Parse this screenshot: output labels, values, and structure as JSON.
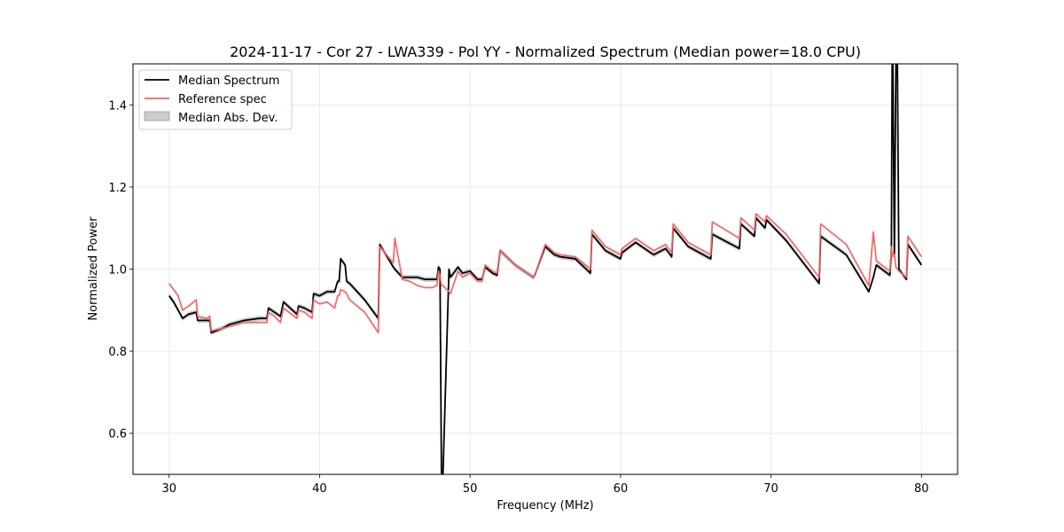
{
  "chart_data": {
    "type": "line",
    "title": "2024-11-17 - Cor 27 - LWA339 - Pol YY - Normalized Spectrum (Median power=18.0 CPU)",
    "xlabel": "Frequency (MHz)",
    "ylabel": "Normalized Power",
    "xlim": [
      27.6,
      82.4
    ],
    "ylim": [
      0.5,
      1.5
    ],
    "xticks": [
      30,
      40,
      50,
      60,
      70,
      80
    ],
    "yticks": [
      0.6,
      0.8,
      1.0,
      1.2,
      1.4
    ],
    "xtick_labels": [
      "30",
      "40",
      "50",
      "60",
      "70",
      "80"
    ],
    "ytick_labels": [
      "0.6",
      "0.8",
      "1.0",
      "1.2",
      "1.4"
    ],
    "grid": true,
    "legend_position": "top-left",
    "series": [
      {
        "name": "Median Spectrum",
        "color": "#000000",
        "x": [
          30.0,
          30.3,
          30.6,
          30.9,
          31.3,
          31.8,
          31.9,
          32.5,
          32.7,
          32.8,
          33.5,
          34.0,
          35.0,
          36.0,
          36.5,
          36.6,
          37.0,
          37.4,
          37.6,
          38.5,
          38.6,
          39.0,
          39.5,
          39.6,
          40.0,
          40.5,
          41.0,
          41.2,
          41.3,
          41.4,
          41.7,
          41.8,
          42.0,
          43.0,
          43.9,
          44.0,
          44.9,
          45.0,
          45.5,
          46.0,
          46.5,
          47.0,
          47.5,
          47.8,
          47.9,
          48.0,
          48.1,
          48.2,
          48.6,
          48.7,
          49.2,
          49.5,
          50.0,
          50.5,
          50.8,
          51.0,
          51.5,
          51.8,
          52.0,
          53.0,
          54.0,
          54.2,
          54.3,
          55.0,
          55.6,
          56.0,
          57.0,
          58.0,
          58.1,
          59.0,
          60.0,
          60.1,
          61.0,
          62.0,
          62.2,
          63.0,
          63.4,
          63.5,
          64.5,
          66.0,
          66.1,
          67.9,
          68.0,
          68.9,
          69.0,
          69.6,
          69.7,
          71.0,
          73.2,
          73.3,
          75.0,
          76.5,
          76.8,
          77.0,
          77.9,
          78.0,
          78.05,
          78.1,
          78.2,
          78.3,
          78.4,
          78.5,
          79.0,
          79.1,
          80.0
        ],
        "y": [
          0.935,
          0.92,
          0.9,
          0.88,
          0.89,
          0.895,
          0.875,
          0.875,
          0.875,
          0.845,
          0.855,
          0.865,
          0.875,
          0.88,
          0.88,
          0.905,
          0.895,
          0.885,
          0.92,
          0.89,
          0.91,
          0.905,
          0.895,
          0.94,
          0.935,
          0.945,
          0.945,
          0.97,
          0.97,
          1.025,
          1.01,
          0.97,
          0.965,
          0.925,
          0.88,
          1.06,
          1.005,
          1.0,
          0.98,
          0.98,
          0.98,
          0.975,
          0.975,
          0.975,
          1.005,
          1.0,
          0.5,
          0.5,
          1.0,
          0.98,
          1.005,
          0.99,
          0.995,
          0.975,
          0.975,
          1.005,
          0.99,
          0.985,
          1.045,
          1.01,
          0.985,
          0.98,
          0.985,
          1.055,
          1.035,
          1.03,
          1.025,
          0.99,
          1.085,
          1.045,
          1.025,
          1.04,
          1.065,
          1.04,
          1.035,
          1.05,
          1.03,
          1.1,
          1.055,
          1.025,
          1.085,
          1.05,
          1.11,
          1.08,
          1.125,
          1.1,
          1.12,
          1.07,
          0.965,
          1.08,
          1.035,
          0.945,
          0.98,
          1.01,
          0.985,
          1.04,
          1.5,
          1.5,
          1.03,
          1.5,
          1.5,
          1.0,
          0.975,
          1.06,
          1.01
        ],
        "band_width": 0.006
      },
      {
        "name": "Reference spec",
        "color": "#f06464",
        "x": [
          30.0,
          30.3,
          30.6,
          30.9,
          31.3,
          31.8,
          31.9,
          32.5,
          32.7,
          32.8,
          33.5,
          34.0,
          35.0,
          36.0,
          36.5,
          36.6,
          37.0,
          37.4,
          37.6,
          38.5,
          38.6,
          39.0,
          39.5,
          39.6,
          40.0,
          40.5,
          41.0,
          41.2,
          41.3,
          41.4,
          41.7,
          41.8,
          42.0,
          43.0,
          43.9,
          44.0,
          44.9,
          45.0,
          45.5,
          46.0,
          46.5,
          47.0,
          47.5,
          47.8,
          47.9,
          48.0,
          48.1,
          48.2,
          48.6,
          48.7,
          49.2,
          49.5,
          50.0,
          50.5,
          50.8,
          51.0,
          51.5,
          51.8,
          52.0,
          53.0,
          54.0,
          54.2,
          54.3,
          55.0,
          55.6,
          56.0,
          57.0,
          58.0,
          58.1,
          59.0,
          60.0,
          60.1,
          61.0,
          62.0,
          62.2,
          63.0,
          63.4,
          63.5,
          64.5,
          66.0,
          66.1,
          67.9,
          68.0,
          68.9,
          69.0,
          69.6,
          69.7,
          71.0,
          73.2,
          73.3,
          75.0,
          76.5,
          76.8,
          77.0,
          77.9,
          78.0,
          78.05,
          78.1,
          78.2,
          78.3,
          78.4,
          78.5,
          79.0,
          79.1,
          80.0
        ],
        "y": [
          0.965,
          0.95,
          0.935,
          0.9,
          0.91,
          0.925,
          0.885,
          0.88,
          0.885,
          0.85,
          0.855,
          0.86,
          0.87,
          0.87,
          0.87,
          0.895,
          0.885,
          0.87,
          0.905,
          0.88,
          0.9,
          0.895,
          0.88,
          0.925,
          0.915,
          0.92,
          0.905,
          0.935,
          0.935,
          0.95,
          0.945,
          0.94,
          0.925,
          0.895,
          0.845,
          1.055,
          1.015,
          1.075,
          0.975,
          0.97,
          0.96,
          0.955,
          0.955,
          0.96,
          0.995,
          0.985,
          0.96,
          0.96,
          0.945,
          0.94,
          0.995,
          0.98,
          0.99,
          0.97,
          0.97,
          1.01,
          0.995,
          0.99,
          1.045,
          1.01,
          0.985,
          0.98,
          0.985,
          1.06,
          1.04,
          1.035,
          1.03,
          1.0,
          1.095,
          1.055,
          1.035,
          1.05,
          1.075,
          1.05,
          1.045,
          1.06,
          1.04,
          1.11,
          1.065,
          1.035,
          1.115,
          1.075,
          1.125,
          1.095,
          1.135,
          1.115,
          1.13,
          1.085,
          0.98,
          1.11,
          1.06,
          0.96,
          1.09,
          1.02,
          0.995,
          1.055,
          1.03,
          1.04,
          1.035,
          1.005,
          1.0,
          0.995,
          0.98,
          1.08,
          1.03
        ]
      }
    ],
    "band": {
      "name": "Median Abs. Dev.",
      "color": "#cccccc"
    },
    "legend_entries": [
      "Median Spectrum",
      "Reference spec",
      "Median Abs. Dev."
    ]
  }
}
